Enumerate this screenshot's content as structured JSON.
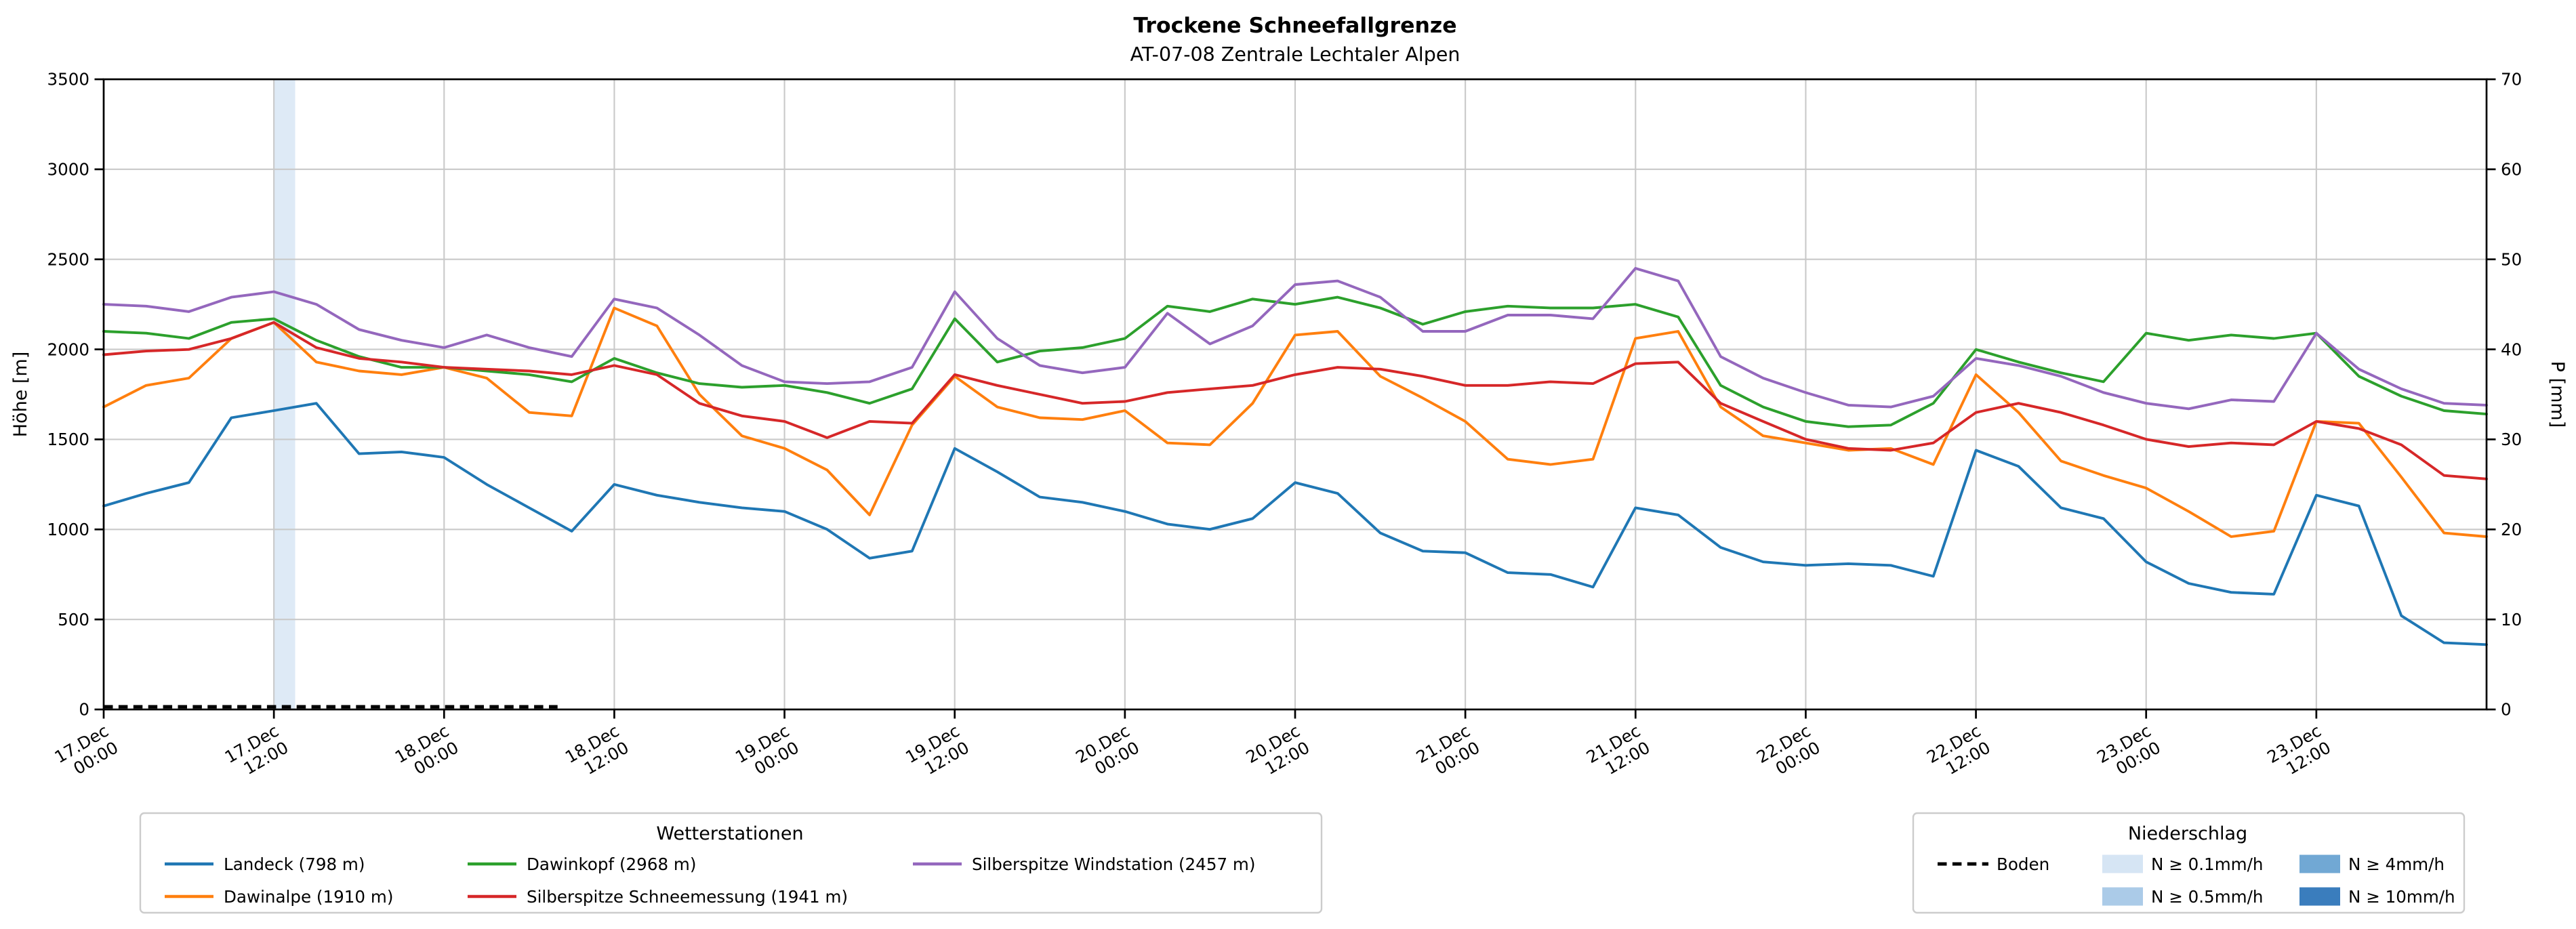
{
  "title": "Trockene Schneefallgrenze",
  "subtitle": "AT-07-08 Zentrale Lechtaler Alpen",
  "chart_data": {
    "type": "line",
    "title": "Trockene Schneefallgrenze",
    "subtitle": "AT-07-08 Zentrale Lechtaler Alpen",
    "ylabel_left": "Höhe [m]",
    "ylabel_right": "P [mm]",
    "ylim_left": [
      0,
      3500
    ],
    "ylim_right": [
      0,
      70
    ],
    "yticks_left": [
      0,
      500,
      1000,
      1500,
      2000,
      2500,
      3000,
      3500
    ],
    "yticks_right": [
      0,
      10,
      20,
      30,
      40,
      50,
      60,
      70
    ],
    "xlim_hours": [
      0,
      168
    ],
    "grid": true,
    "x_ticks": [
      {
        "hour": 0,
        "date": "17.Dec",
        "time": "00:00"
      },
      {
        "hour": 12,
        "date": "17.Dec",
        "time": "12:00"
      },
      {
        "hour": 24,
        "date": "18.Dec",
        "time": "00:00"
      },
      {
        "hour": 36,
        "date": "18.Dec",
        "time": "12:00"
      },
      {
        "hour": 48,
        "date": "19.Dec",
        "time": "00:00"
      },
      {
        "hour": 60,
        "date": "19.Dec",
        "time": "12:00"
      },
      {
        "hour": 72,
        "date": "20.Dec",
        "time": "00:00"
      },
      {
        "hour": 84,
        "date": "20.Dec",
        "time": "12:00"
      },
      {
        "hour": 96,
        "date": "21.Dec",
        "time": "00:00"
      },
      {
        "hour": 108,
        "date": "21.Dec",
        "time": "12:00"
      },
      {
        "hour": 120,
        "date": "22.Dec",
        "time": "00:00"
      },
      {
        "hour": 132,
        "date": "22.Dec",
        "time": "12:00"
      },
      {
        "hour": 144,
        "date": "23.Dec",
        "time": "00:00"
      },
      {
        "hour": 156,
        "date": "23.Dec",
        "time": "12:00"
      }
    ],
    "x_step_hours": 3,
    "series": [
      {
        "name": "Landeck (798 m)",
        "color": "#1f77b4",
        "values": [
          1130,
          1200,
          1260,
          1620,
          1660,
          1700,
          1420,
          1430,
          1400,
          1250,
          1120,
          990,
          1250,
          1190,
          1150,
          1120,
          1100,
          1000,
          840,
          880,
          1450,
          1320,
          1180,
          1150,
          1100,
          1030,
          1000,
          1060,
          1260,
          1200,
          980,
          880,
          870,
          760,
          750,
          680,
          1120,
          1080,
          900,
          820,
          800,
          810,
          800,
          740,
          1440,
          1350,
          1120,
          1060,
          820,
          700,
          650,
          640,
          1190,
          1130,
          520,
          370,
          360
        ]
      },
      {
        "name": "Dawinalpe (1910 m)",
        "color": "#ff7f0e",
        "values": [
          1680,
          1800,
          1840,
          2060,
          2150,
          1930,
          1880,
          1860,
          1900,
          1840,
          1650,
          1630,
          2230,
          2130,
          1750,
          1520,
          1450,
          1330,
          1080,
          1580,
          1850,
          1680,
          1620,
          1610,
          1660,
          1480,
          1470,
          1700,
          2080,
          2100,
          1850,
          1730,
          1600,
          1390,
          1360,
          1390,
          2060,
          2100,
          1680,
          1520,
          1480,
          1440,
          1450,
          1360,
          1860,
          1650,
          1380,
          1300,
          1230,
          1100,
          960,
          990,
          1600,
          1590,
          1290,
          980,
          960
        ]
      },
      {
        "name": "Dawinkopf (2968 m)",
        "color": "#2ca02c",
        "values": [
          2100,
          2090,
          2060,
          2150,
          2170,
          2050,
          1960,
          1900,
          1900,
          1880,
          1860,
          1820,
          1950,
          1870,
          1810,
          1790,
          1800,
          1760,
          1700,
          1780,
          2170,
          1930,
          1990,
          2010,
          2060,
          2240,
          2210,
          2280,
          2250,
          2290,
          2230,
          2140,
          2210,
          2240,
          2230,
          2230,
          2250,
          2180,
          1800,
          1680,
          1600,
          1570,
          1580,
          1700,
          2000,
          1930,
          1870,
          1820,
          2090,
          2050,
          2080,
          2060,
          2090,
          1850,
          1740,
          1660,
          1640
        ]
      },
      {
        "name": "Silberspitze Schneemessung (1941 m)",
        "color": "#d62728",
        "values": [
          1970,
          1990,
          2000,
          2060,
          2150,
          2010,
          1950,
          1930,
          1900,
          1890,
          1880,
          1860,
          1910,
          1860,
          1700,
          1630,
          1600,
          1510,
          1600,
          1590,
          1860,
          1800,
          1750,
          1700,
          1710,
          1760,
          1780,
          1800,
          1860,
          1900,
          1890,
          1850,
          1800,
          1800,
          1820,
          1810,
          1920,
          1930,
          1700,
          1600,
          1500,
          1450,
          1440,
          1480,
          1650,
          1700,
          1650,
          1580,
          1500,
          1460,
          1480,
          1470,
          1600,
          1560,
          1470,
          1300,
          1280
        ]
      },
      {
        "name": "Silberspitze Windstation (2457 m)",
        "color": "#9467bd",
        "values": [
          2250,
          2240,
          2210,
          2290,
          2320,
          2250,
          2110,
          2050,
          2010,
          2080,
          2010,
          1960,
          2280,
          2230,
          2080,
          1910,
          1820,
          1810,
          1820,
          1900,
          2320,
          2060,
          1910,
          1870,
          1900,
          2200,
          2030,
          2130,
          2360,
          2380,
          2290,
          2100,
          2100,
          2190,
          2190,
          2170,
          2450,
          2380,
          1960,
          1840,
          1760,
          1690,
          1680,
          1740,
          1950,
          1910,
          1850,
          1760,
          1700,
          1670,
          1720,
          1710,
          2090,
          1890,
          1780,
          1700,
          1690
        ]
      }
    ],
    "boden": {
      "name": "Boden",
      "color": "#000000",
      "style": "dashed",
      "start_hour": 0,
      "end_hour": 32,
      "value_m": 15
    },
    "precip_bands": [
      {
        "start_hour": 12,
        "end_hour": 13.5,
        "level": "N ≥ 0.1mm/h",
        "color": "#d6e5f4"
      }
    ],
    "style": {
      "grid_color": "#c9c9c9",
      "axis_color": "#000000",
      "band_opacity": 0.8,
      "line_width": 1.3
    }
  },
  "legend_stations": {
    "title": "Wetterstationen"
  },
  "legend_precip": {
    "title": "Niederschlag",
    "boden_label": "Boden",
    "levels": [
      {
        "label": "N ≥ 0.1mm/h",
        "color": "#d6e5f4"
      },
      {
        "label": "N ≥ 0.5mm/h",
        "color": "#abcbe8"
      },
      {
        "label": "N ≥ 4mm/h",
        "color": "#71a8d4"
      },
      {
        "label": "N ≥ 10mm/h",
        "color": "#3a7dbd"
      }
    ]
  }
}
